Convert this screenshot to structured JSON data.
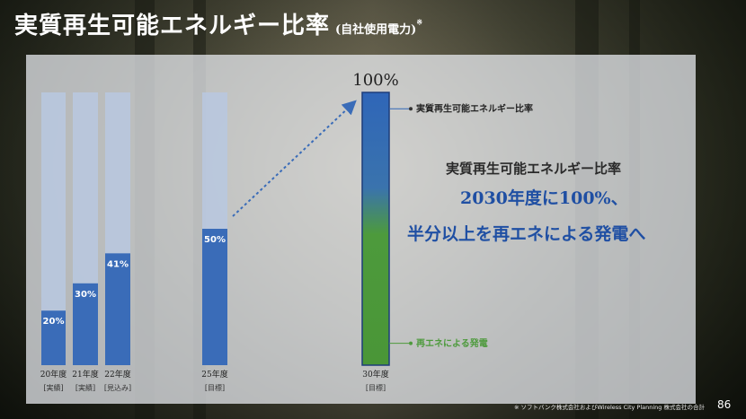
{
  "header": {
    "title": "実質再生可能エネルギー比率",
    "subtitle": "(自社使用電力)",
    "note_mark": "※"
  },
  "chart_data": {
    "type": "bar",
    "categories": [
      "20年度",
      "21年度",
      "22年度",
      "25年度",
      "30年度"
    ],
    "category_notes": [
      "[実績]",
      "[実績]",
      "[見込み]",
      "[目標]",
      "[目標]"
    ],
    "values": [
      20,
      30,
      41,
      50,
      100
    ],
    "value_labels": [
      "20%",
      "30%",
      "41%",
      "50%",
      "100%"
    ],
    "ylim": [
      0,
      100
    ],
    "grid": false,
    "final_bar_segments": [
      {
        "name": "実質再生可能エネルギー比率",
        "color": "#2f66b8"
      },
      {
        "name": "再エネによる発電",
        "color": "#4d9a3c"
      }
    ],
    "colors": {
      "bar": "#3a6cb8",
      "background_bar": "#b8c8e0",
      "trend_arrow": "#3a6cb8"
    }
  },
  "message": {
    "line1": "実質再生可能エネルギー比率",
    "line2": "2030年度に100%、",
    "line3": "半分以上を再エネによる発電へ"
  },
  "footer": {
    "footnote": "※ ソフトバンク株式会社およびWireless City Planning 株式会社の合計",
    "page_number": "86"
  }
}
